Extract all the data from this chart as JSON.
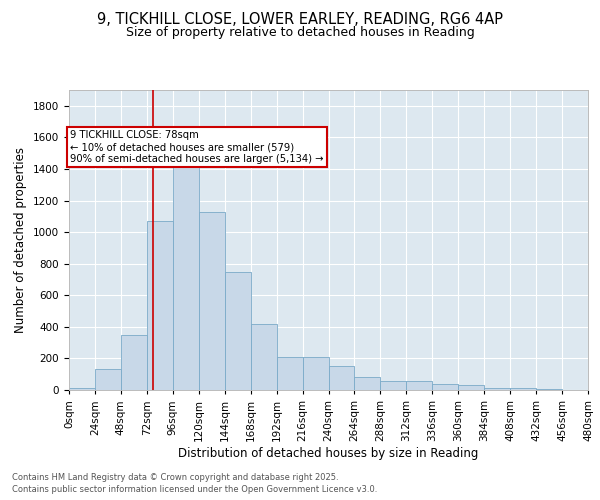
{
  "title_line1": "9, TICKHILL CLOSE, LOWER EARLEY, READING, RG6 4AP",
  "title_line2": "Size of property relative to detached houses in Reading",
  "xlabel": "Distribution of detached houses by size in Reading",
  "ylabel": "Number of detached properties",
  "bar_color": "#c8d8e8",
  "bar_edge_color": "#7aaac8",
  "background_color": "#dde8f0",
  "grid_color": "#ffffff",
  "annotation_text": "9 TICKHILL CLOSE: 78sqm\n← 10% of detached houses are smaller (579)\n90% of semi-detached houses are larger (5,134) →",
  "vline_x": 78,
  "vline_color": "#cc0000",
  "footer_line1": "Contains HM Land Registry data © Crown copyright and database right 2025.",
  "footer_line2": "Contains public sector information licensed under the Open Government Licence v3.0.",
  "bin_edges": [
    0,
    24,
    48,
    72,
    96,
    120,
    144,
    168,
    192,
    216,
    240,
    264,
    288,
    312,
    336,
    360,
    384,
    408,
    432,
    456,
    480
  ],
  "bar_heights": [
    10,
    130,
    350,
    1070,
    1470,
    1130,
    750,
    420,
    210,
    210,
    150,
    80,
    55,
    55,
    35,
    30,
    15,
    10,
    5,
    2
  ],
  "ylim": [
    0,
    1900
  ],
  "yticks": [
    0,
    200,
    400,
    600,
    800,
    1000,
    1200,
    1400,
    1600,
    1800
  ],
  "title_fontsize": 10.5,
  "subtitle_fontsize": 9,
  "axis_fontsize": 8.5,
  "tick_fontsize": 7.5,
  "footer_fontsize": 6.0
}
